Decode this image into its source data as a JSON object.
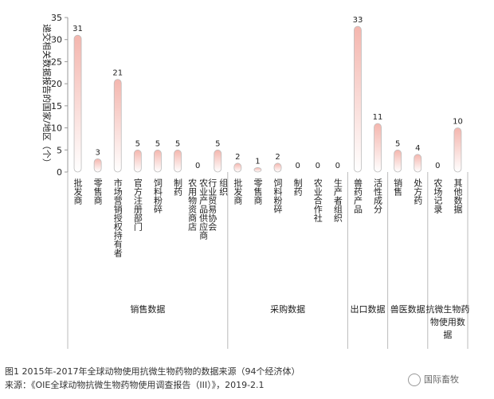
{
  "chart_data": {
    "type": "bar",
    "ylabel": "递交相关数据报告的国家/地区（个）",
    "ylim": [
      0,
      35
    ],
    "yticks": [
      0,
      5,
      10,
      15,
      20,
      25,
      30,
      35
    ],
    "categories": [
      "批发商",
      "零售商",
      "市场营销授权持有者",
      "官方注册部门",
      "饲料粉碎",
      "制药",
      "农用物资商店 农业产品供应商",
      "行业贸易协会 组织",
      "批发商",
      "零售商",
      "饲料粉碎",
      "制药",
      "农业合作社",
      "生产者组织",
      "兽药产品",
      "活性成分",
      "销售",
      "处方药",
      "农场记录",
      "其他数据"
    ],
    "values": [
      31,
      3,
      21,
      5,
      5,
      5,
      0,
      5,
      2,
      1,
      2,
      0,
      0,
      0,
      33,
      11,
      5,
      4,
      0,
      10
    ],
    "groups": [
      {
        "name": "销售数据",
        "start": 0,
        "end": 7
      },
      {
        "name": "采购数据",
        "start": 8,
        "end": 13
      },
      {
        "name": "出口数据",
        "start": 14,
        "end": 15
      },
      {
        "name": "兽医数据",
        "start": 16,
        "end": 17
      },
      {
        "name": "抗微生物药物使用数据",
        "start": 18,
        "end": 19
      }
    ]
  },
  "caption": {
    "line1": "图1 2015年-2017年全球动物使用抗微生物药物的数据来源（94个经济体）",
    "line2": "来源：《OIE全球动物抗微生物药物使用调查报告（III）》，2019-2.1"
  },
  "watermark": "国际畜牧",
  "colors": {
    "bar_top": "#f4b6ae",
    "bar_bottom": "#ffffff",
    "bar_stroke": "#bdbdbd",
    "axis": "#bbbbbb"
  }
}
